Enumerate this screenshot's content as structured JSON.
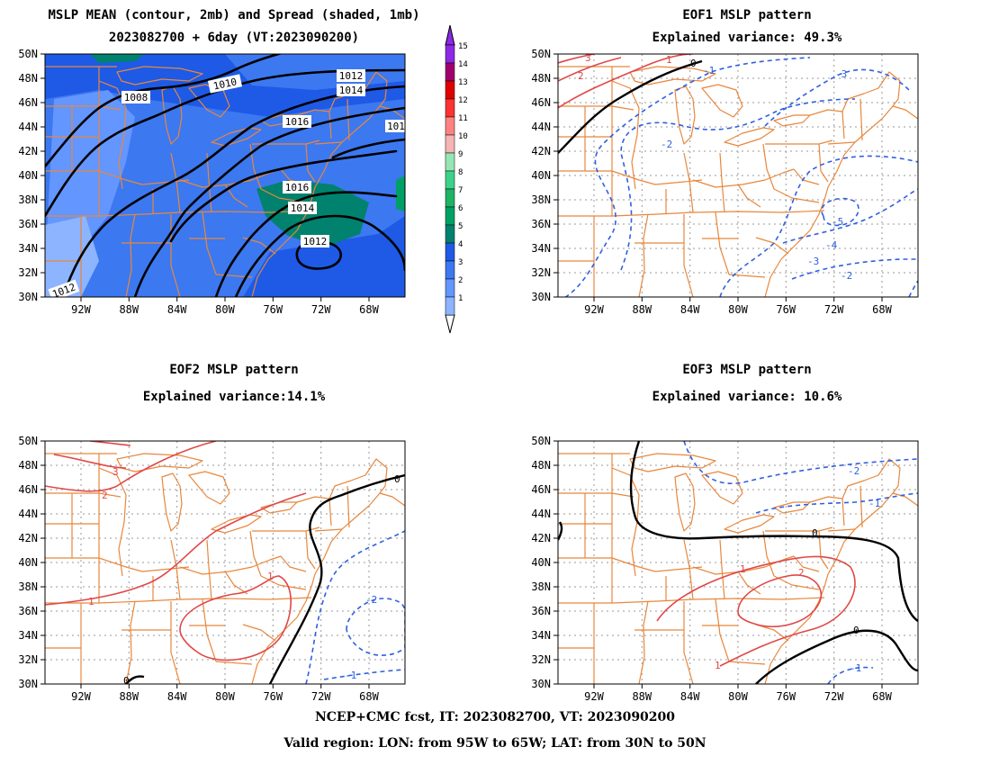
{
  "panels": [
    {
      "id": "mean",
      "title_line1": "MSLP MEAN (contour, 2mb) and Spread (shaded, 1mb)",
      "title_line2": "2023082700 + 6day (VT:2023090200)"
    },
    {
      "id": "eof1",
      "title_line1": "EOF1 MSLP pattern",
      "title_line2": "Explained variance: 49.3%"
    },
    {
      "id": "eof2",
      "title_line1": "EOF2 MSLP pattern",
      "title_line2": "Explained variance:14.1%"
    },
    {
      "id": "eof3",
      "title_line1": "EOF3 MSLP pattern",
      "title_line2": "Explained variance: 10.6%"
    }
  ],
  "axes": {
    "lat_labels": [
      "50N",
      "48N",
      "46N",
      "44N",
      "42N",
      "40N",
      "38N",
      "36N",
      "34N",
      "32N",
      "30N"
    ],
    "lon_labels": [
      "92W",
      "88W",
      "84W",
      "80W",
      "76W",
      "72W",
      "68W"
    ]
  },
  "colorbar": {
    "labels": [
      "1",
      "2",
      "3",
      "4",
      "5",
      "6",
      "7",
      "8",
      "9",
      "10",
      "11",
      "12",
      "13",
      "14",
      "15"
    ],
    "colors": [
      "#b4c8ff",
      "#8cb4ff",
      "#6496ff",
      "#3c78f0",
      "#1e5ae6",
      "#00826e",
      "#00a064",
      "#1eb464",
      "#3cd28c",
      "#96e6b4",
      "#f5b4b4",
      "#ff8282",
      "#ff3232",
      "#e10000",
      "#a0006e",
      "#8c28e6"
    ]
  },
  "mean_contour_labels": [
    "1008",
    "1010",
    "1012",
    "1014",
    "1016",
    "1016",
    "1014",
    "1012",
    "101",
    "1012"
  ],
  "eof1_labels": [
    "0",
    "-1",
    "-2",
    "-3",
    "-4",
    "-5",
    "-3",
    "-2",
    "1",
    "2",
    "3"
  ],
  "eof2_labels": [
    "0",
    "1",
    "-1",
    "-2",
    "-1",
    "1",
    "2",
    "3",
    "0"
  ],
  "eof3_labels": [
    "0",
    "0",
    "1",
    "2",
    "-1",
    "-2",
    "-1",
    "1"
  ],
  "footer": {
    "line1": "NCEP+CMC fcst, IT: 2023082700, VT: 2023090200",
    "line2": "Valid region: LON: from 95W to 65W; LAT: from 30N to 50N"
  }
}
